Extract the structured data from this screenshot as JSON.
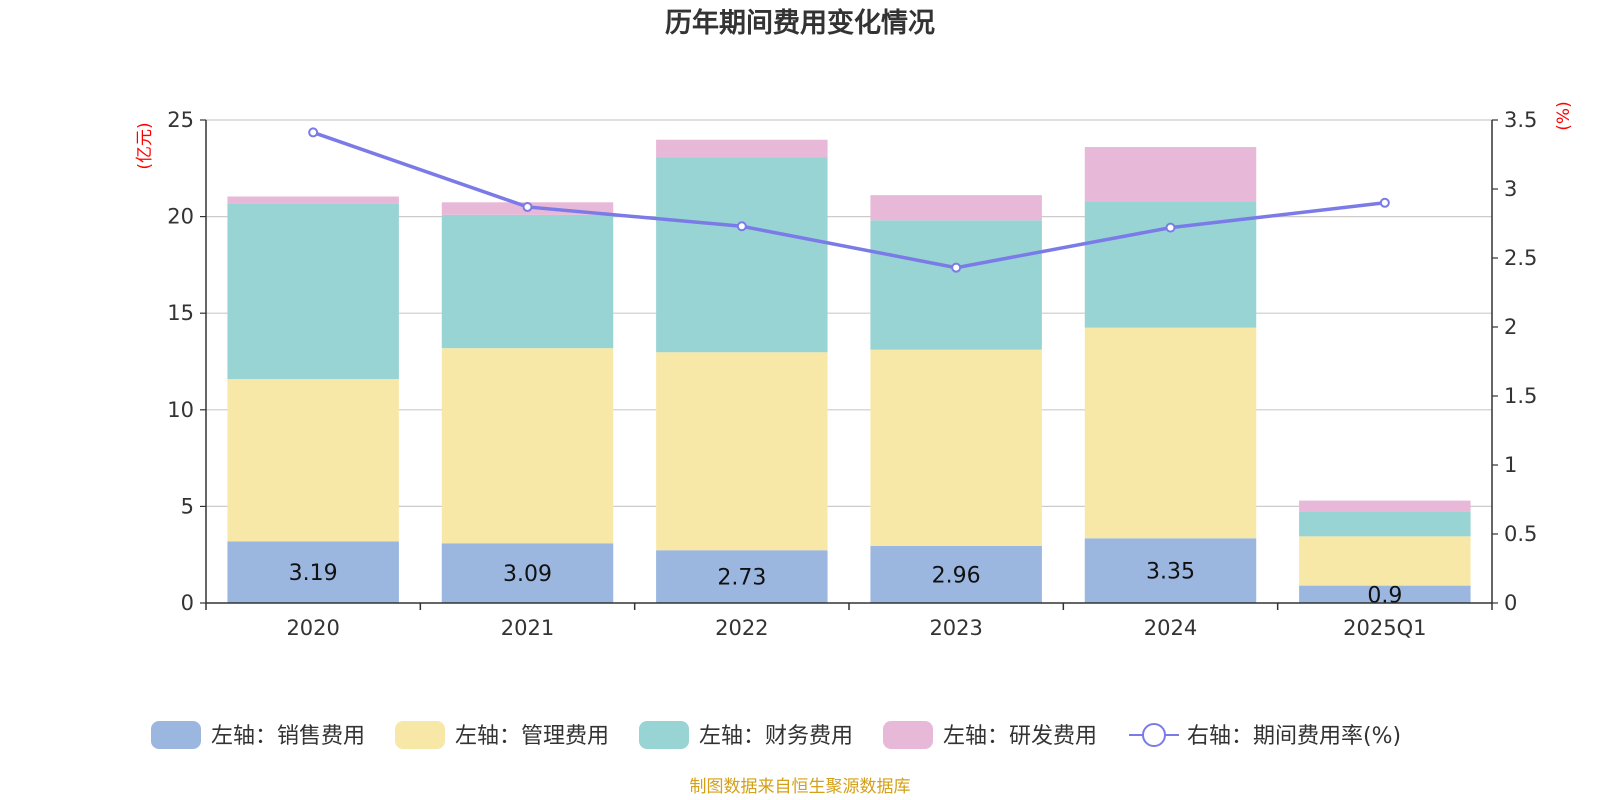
{
  "chart_data": {
    "type": "bar",
    "stacked": true,
    "title": "历年期间费用变化情况",
    "categories": [
      "2020",
      "2021",
      "2022",
      "2023",
      "2024",
      "2025Q1"
    ],
    "y_left": {
      "unit": "(亿元)",
      "min": 0,
      "max": 25,
      "ticks": [
        0,
        5,
        10,
        15,
        20,
        25
      ]
    },
    "y_right": {
      "unit": "(%)",
      "min": 0,
      "max": 3.5,
      "ticks": [
        "0",
        "0.5",
        "1",
        "1.5",
        "2",
        "2.5",
        "3",
        "3.5"
      ]
    },
    "grid": true,
    "legend_position": "bottom",
    "series": [
      {
        "name": "左轴：销售费用",
        "axis": "left",
        "type": "bar",
        "color": "#9bb7e0",
        "values": [
          3.19,
          3.09,
          2.73,
          2.96,
          3.35,
          0.9
        ],
        "labels": [
          "3.19",
          "3.09",
          "2.73",
          "2.96",
          "3.35",
          "0.9"
        ]
      },
      {
        "name": "左轴：管理费用",
        "axis": "left",
        "type": "bar",
        "color": "#f8e8a8",
        "values": [
          8.4,
          10.1,
          10.25,
          10.15,
          10.9,
          2.55
        ]
      },
      {
        "name": "左轴：财务费用",
        "axis": "left",
        "type": "bar",
        "color": "#98d4d4",
        "values": [
          9.1,
          6.9,
          10.1,
          6.7,
          6.55,
          1.3
        ]
      },
      {
        "name": "左轴：研发费用",
        "axis": "left",
        "type": "bar",
        "color": "#e8b8d8",
        "values": [
          0.35,
          0.65,
          0.9,
          1.3,
          2.8,
          0.55
        ]
      },
      {
        "name": "右轴：期间费用率(%)",
        "axis": "right",
        "type": "line",
        "color": "#7b7be8",
        "values": [
          3.41,
          2.87,
          2.73,
          2.43,
          2.72,
          2.9
        ]
      }
    ],
    "source": "制图数据来自恒生聚源数据库"
  }
}
